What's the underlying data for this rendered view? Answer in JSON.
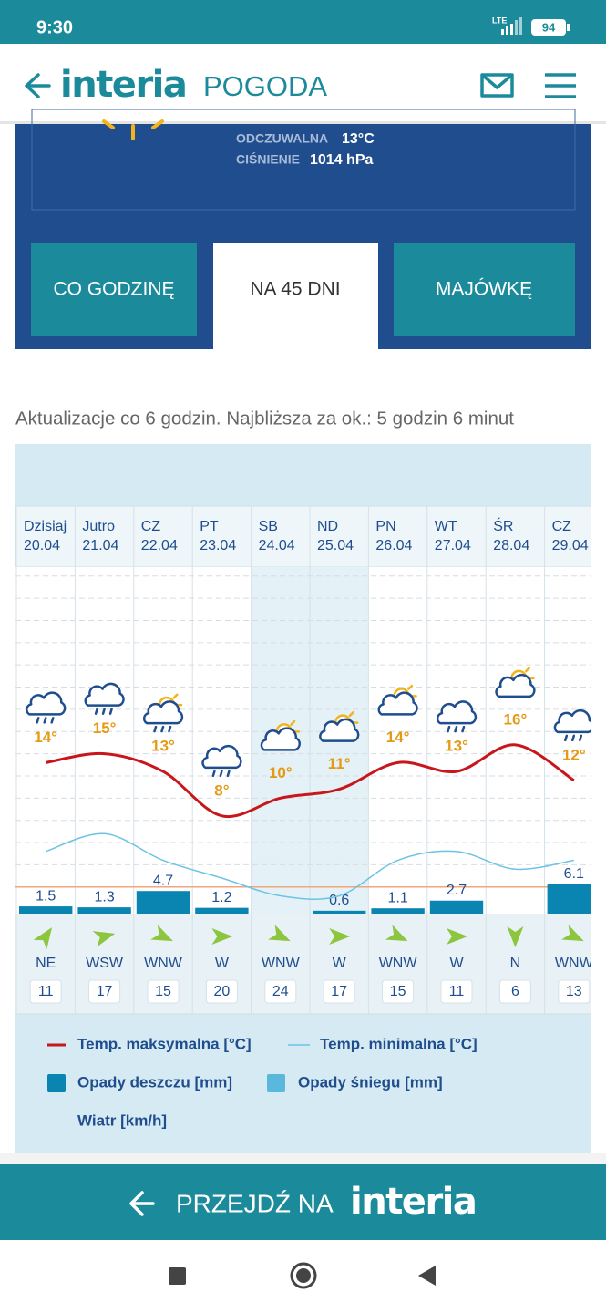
{
  "status_bar": {
    "time": "9:30",
    "network": "LTE",
    "battery": "94"
  },
  "header": {
    "logo": "interia",
    "section": "POGODA"
  },
  "current": {
    "feels_like_label": "ODCZUWALNA",
    "feels_like": "13°C",
    "pressure_label": "CIŚNIENIE",
    "pressure": "1014 hPa"
  },
  "tabs": [
    "CO GODZINĘ",
    "NA 45 DNI",
    "MAJÓWKĘ"
  ],
  "update_note": "Aktualizacje co 6 godzin. Najbliższa za ok.: 5 godzin 6 minut",
  "chart_data": {
    "type": "line",
    "categories": [
      "Dzisiaj",
      "Jutro",
      "CZ",
      "PT",
      "SB",
      "ND",
      "PN",
      "WT",
      "ŚR",
      "CZ"
    ],
    "dates": [
      "20.04",
      "21.04",
      "22.04",
      "23.04",
      "24.04",
      "25.04",
      "26.04",
      "27.04",
      "28.04",
      "29.04"
    ],
    "ylim": [
      -3,
      36
    ],
    "y2lim": [
      0,
      72
    ],
    "grid": true,
    "series": [
      {
        "name": "Temp. maksymalna [°C]",
        "color": "#c8161d",
        "values": [
          14,
          15,
          13,
          8,
          10,
          11,
          14,
          13,
          16,
          12
        ],
        "value_labels": [
          "14°",
          "15°",
          "13°",
          "8°",
          "10°",
          "11°",
          "14°",
          "13°",
          "16°",
          "12°"
        ]
      },
      {
        "name": "Temp. minimalna [°C]",
        "color": "#6cc3e3",
        "values": [
          4,
          6,
          3,
          1,
          -1,
          -1,
          3,
          4,
          2,
          3
        ]
      },
      {
        "name": "Opady deszczu [mm]",
        "color": "#0a84b1",
        "axis": "y2",
        "values": [
          1.5,
          1.3,
          4.7,
          1.2,
          null,
          0.6,
          1.1,
          2.7,
          null,
          6.1
        ]
      },
      {
        "name": "Opady śniegu [mm]",
        "color": "#5ab8dc",
        "axis": "y2",
        "values": [
          null,
          null,
          null,
          null,
          null,
          null,
          null,
          null,
          null,
          null
        ]
      }
    ],
    "wind": {
      "name": "Wiatr [km/h]",
      "directions": [
        "NE",
        "WSW",
        "WNW",
        "W",
        "WNW",
        "W",
        "WNW",
        "W",
        "N",
        "WNW"
      ],
      "speeds": [
        11,
        17,
        15,
        20,
        24,
        17,
        15,
        11,
        6,
        13
      ]
    }
  },
  "footer": {
    "text": "PRZEJDŹ NA",
    "logo": "interia"
  }
}
